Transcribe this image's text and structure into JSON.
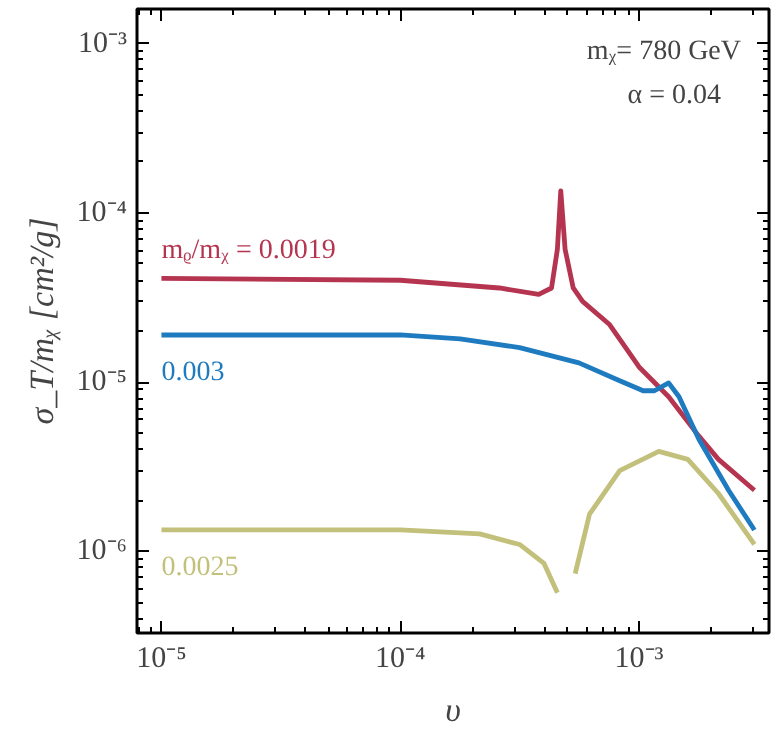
{
  "chart_data": {
    "type": "line",
    "xlabel": "υ",
    "ylabel": "σ_T/mᵪ [cm²/g]",
    "log": "xy",
    "grid": false,
    "legend": false,
    "xlim": [
      7.9e-06,
      0.0035
    ],
    "ylim": [
      3.3e-07,
      0.0016
    ],
    "xticks": [
      {
        "value": 1e-05,
        "label": "10⁻⁵"
      },
      {
        "value": 0.0001,
        "label": "10⁻⁴"
      },
      {
        "value": 0.001,
        "label": "10⁻³"
      }
    ],
    "yticks": [
      {
        "value": 1e-06,
        "label": "10⁻⁶"
      },
      {
        "value": 1e-05,
        "label": "10⁻⁵"
      },
      {
        "value": 0.0001,
        "label": "10⁻⁴"
      },
      {
        "value": 0.001,
        "label": "10⁻³"
      }
    ],
    "annotations": [
      "mᵪ= 780 GeV",
      "α = 0.04"
    ],
    "series": [
      {
        "name": "mᵨ/mᵪ = 0.0019",
        "color": "#b5344f",
        "x": [
          1e-05,
          0.0001,
          0.00026,
          0.00038,
          0.00043,
          0.000455,
          0.00047,
          0.00049,
          0.00053,
          0.00058,
          0.00075,
          0.001,
          0.00133,
          0.00178,
          0.00215,
          0.00304
        ],
        "values": [
          4.1e-05,
          4e-05,
          3.6e-05,
          3.3e-05,
          3.6e-05,
          6.1e-05,
          0.000135,
          6.1e-05,
          3.6e-05,
          3e-05,
          2.2e-05,
          1.23e-05,
          8.2e-06,
          4.8e-06,
          3.5e-06,
          2.3e-06
        ]
      },
      {
        "name": "0.003",
        "color": "#1f7bbf",
        "x": [
          1e-05,
          0.0001,
          0.000178,
          0.000316,
          0.00056,
          0.00083,
          0.00104,
          0.00116,
          0.00133,
          0.00147,
          0.00178,
          0.00237,
          0.00304
        ],
        "values": [
          1.9e-05,
          1.9e-05,
          1.8e-05,
          1.6e-05,
          1.3e-05,
          1.02e-05,
          8.9e-06,
          8.9e-06,
          9.9e-06,
          8.2e-06,
          4.6e-06,
          2.3e-06,
          1.34e-06
        ]
      },
      {
        "name": "0.0025",
        "color": "#c2c07a",
        "x": [
          1e-05,
          0.0001,
          0.000215,
          0.000316,
          0.0004,
          0.000455,
          0.00048,
          0.00051,
          0.00054,
          0.00062,
          0.00083,
          0.00121,
          0.0016,
          0.00215,
          0.00304
        ],
        "values": [
          1.34e-06,
          1.34e-06,
          1.27e-06,
          1.1e-06,
          8.5e-07,
          5.7e-07,
          null,
          null,
          7.4e-07,
          1.66e-06,
          3e-06,
          3.9e-06,
          3.5e-06,
          2.2e-06,
          1.1e-06
        ]
      }
    ]
  }
}
